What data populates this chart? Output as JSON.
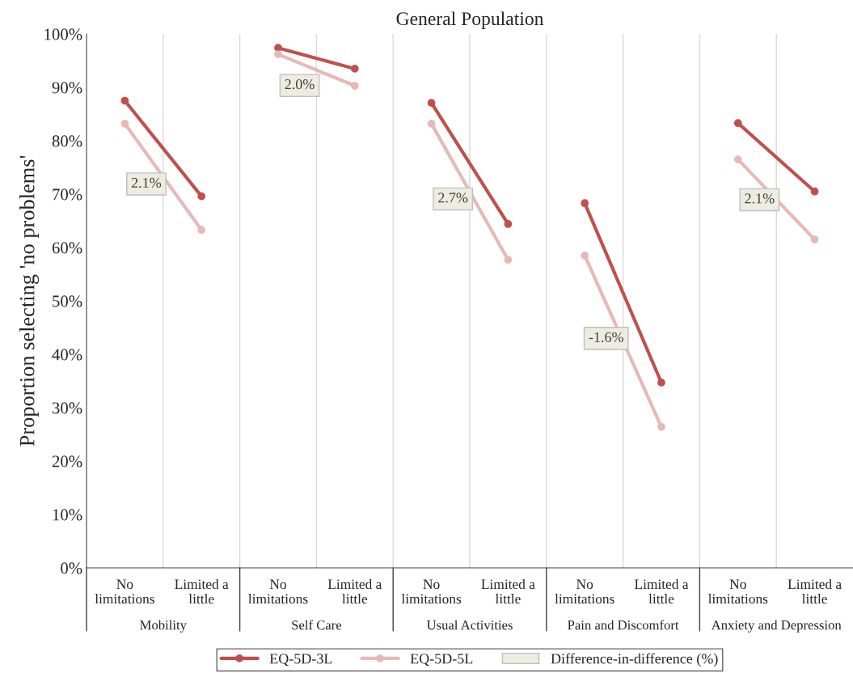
{
  "chart_data": {
    "type": "line",
    "title": "General Population",
    "ylabel": "Proportion selecting 'no problems'",
    "categories": [
      "No\nlimitations",
      "Limited a\nlittle",
      "No\nlimitations",
      "Limited a\nlittle",
      "No\nlimitations",
      "Limited a\nlittle",
      "No\nlimitations",
      "Limited a\nlittle",
      "No\nlimitations",
      "Limited a\nlittle"
    ],
    "annotations": [
      "Mobility",
      "Self Care",
      "Usual Activities",
      "Pain and Discomfort",
      "Anxiety and Depression",
      {
        "text": "2.1%"
      },
      {
        "text": "2.0%"
      },
      {
        "text": "2.7%"
      },
      {
        "text": "-1.6%"
      },
      {
        "text": "2.1%"
      }
    ],
    "legend_title": "Difference-in-difference (%)",
    "series": [
      {
        "name": "EQ-5D-3L",
        "color": "#c0504d",
        "values": [
          87.5,
          69.6,
          null,
          null,
          null,
          null,
          null,
          null,
          null,
          null
        ]
      },
      {
        "name": "EQ-5D-5L",
        "color": "#e6b9b8",
        "values": [
          83.2,
          63.3,
          null,
          null,
          null,
          null,
          null,
          null,
          null,
          null
        ]
      },
      {
        "color": "#c0504d",
        "values": [
          null,
          null,
          97.4,
          93.5,
          null,
          null,
          null,
          null,
          null,
          null
        ]
      },
      {
        "color": "#e6b9b8",
        "values": [
          null,
          null,
          96.2,
          90.3,
          null,
          null,
          null,
          null,
          null,
          null
        ]
      },
      {
        "color": "#c0504d",
        "values": [
          null,
          null,
          null,
          null,
          87.1,
          64.4,
          null,
          null,
          null,
          null
        ]
      },
      {
        "color": "#e6b9b8",
        "values": [
          null,
          null,
          null,
          null,
          83.2,
          57.7,
          null,
          null,
          null,
          null
        ]
      },
      {
        "color": "#c0504d",
        "values": [
          null,
          null,
          null,
          null,
          null,
          null,
          68.3,
          34.7,
          null,
          null
        ]
      },
      {
        "color": "#e6b9b8",
        "values": [
          null,
          null,
          null,
          null,
          null,
          null,
          58.5,
          26.4,
          null,
          null
        ]
      },
      {
        "color": "#c0504d",
        "values": [
          null,
          null,
          null,
          null,
          null,
          null,
          null,
          null,
          83.3,
          70.5
        ]
      },
      {
        "color": "#e6b9b8",
        "values": [
          null,
          null,
          null,
          null,
          null,
          null,
          null,
          null,
          76.5,
          61.5
        ]
      }
    ],
    "marker": "circle",
    "line_style": "solid",
    "ylim": [
      0,
      100
    ],
    "yticks": [
      {
        "value": 0,
        "label": "0%"
      },
      {
        "value": 10,
        "label": "10%"
      },
      {
        "value": 20,
        "label": "20%"
      },
      {
        "value": 30,
        "label": "30%"
      },
      {
        "value": 40,
        "label": "40%"
      },
      {
        "value": 50,
        "label": "50%"
      },
      {
        "value": 60,
        "label": "60%"
      },
      {
        "value": 70,
        "label": "70%"
      },
      {
        "value": 80,
        "label": "80%"
      },
      {
        "value": 90,
        "label": "90%"
      },
      {
        "value": 100,
        "label": "100%"
      }
    ],
    "grid": "x",
    "legend": "bottom"
  }
}
